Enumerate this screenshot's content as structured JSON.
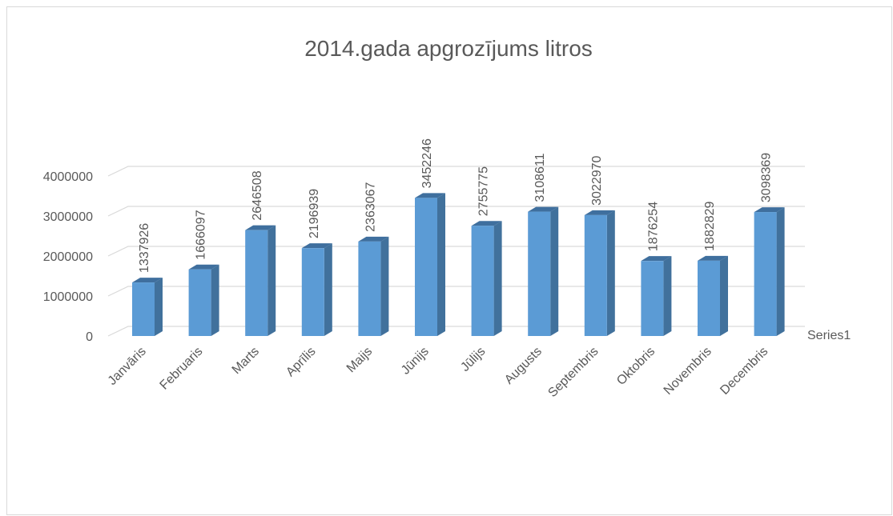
{
  "chart_data": {
    "type": "bar",
    "title": "2014.gada apgrozījums litros",
    "categories": [
      "Janvāris",
      "Februaris",
      "Marts",
      "Aprīlis",
      "Maijs",
      "Jūnijs",
      "Jūlijs",
      "Augusts",
      "Septembris",
      "Oktobris",
      "Novembris",
      "Decembris"
    ],
    "series": [
      {
        "name": "Series1",
        "color": "#5b9bd5",
        "values": [
          1337926,
          1666097,
          2646508,
          2196939,
          2363067,
          3452246,
          2755775,
          3108611,
          3022970,
          1876254,
          1882829,
          3098369
        ]
      }
    ],
    "ylim": [
      0,
      4000000
    ],
    "yticks": [
      0,
      1000000,
      2000000,
      3000000,
      4000000
    ],
    "grid": true,
    "data_labels": true
  }
}
